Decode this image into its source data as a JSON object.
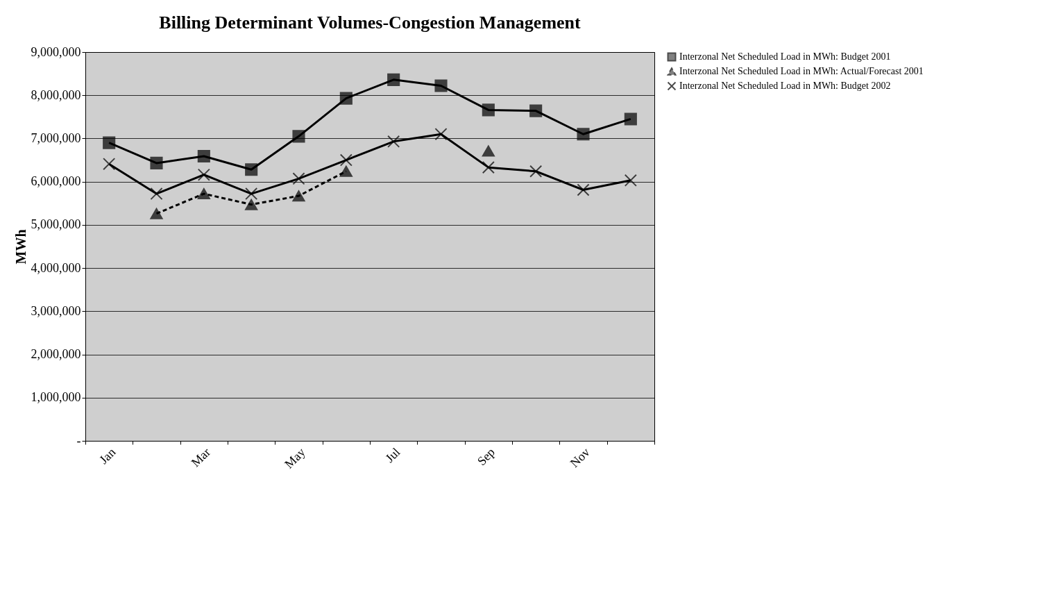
{
  "chart_data": {
    "type": "line",
    "title": "Billing Determinant Volumes-Congestion Management",
    "ylabel": "MWh",
    "categories": [
      "Jan",
      null,
      "Mar",
      null,
      "May",
      null,
      "Jul",
      null,
      "Sep",
      null,
      "Nov",
      null
    ],
    "series": [
      {
        "name": "Interzonal Net Scheduled Load in MWh: Budget 2001",
        "color": "#000000",
        "marker": "square",
        "line_style": "solid",
        "values": [
          6900000,
          6430000,
          6590000,
          6280000,
          7050000,
          7930000,
          8360000,
          8220000,
          7660000,
          7640000,
          7100000,
          7450000
        ]
      },
      {
        "name": "Interzonal Net Scheduled Load in MWh: Actual/Forecast 2001",
        "color": "#000000",
        "marker": "triangle",
        "line_style": "dashed",
        "values": [
          null,
          5260000,
          5720000,
          5470000,
          5670000,
          6240000,
          null,
          null,
          6710000,
          null,
          null,
          null
        ]
      },
      {
        "name": "Interzonal Net Scheduled Load in MWh: Budget 2002",
        "color": "#000000",
        "marker": "cross",
        "line_style": "solid",
        "values": [
          6410000,
          5720000,
          6160000,
          5720000,
          6070000,
          6500000,
          6930000,
          7100000,
          6330000,
          6240000,
          5810000,
          6030000
        ]
      }
    ],
    "ylim": [
      0,
      9000000
    ],
    "yticks": [
      {
        "value": 0,
        "label": "-"
      },
      {
        "value": 1000000,
        "label": "1,000,000"
      },
      {
        "value": 2000000,
        "label": "2,000,000"
      },
      {
        "value": 3000000,
        "label": "3,000,000"
      },
      {
        "value": 4000000,
        "label": "4,000,000"
      },
      {
        "value": 5000000,
        "label": "5,000,000"
      },
      {
        "value": 6000000,
        "label": "6,000,000"
      },
      {
        "value": 7000000,
        "label": "7,000,000"
      },
      {
        "value": 8000000,
        "label": "8,000,000"
      },
      {
        "value": 9000000,
        "label": "9,000,000"
      }
    ],
    "grid": "y",
    "legend": "right"
  }
}
